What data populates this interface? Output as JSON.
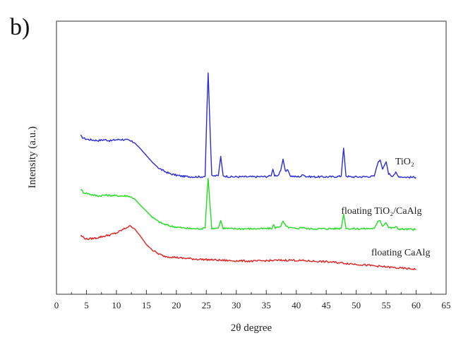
{
  "panel_label": "b)",
  "chart_data": {
    "type": "line",
    "title": "",
    "xlabel": "2θ degree",
    "ylabel": "Intensity (a.u.)",
    "xlim": [
      0,
      65
    ],
    "ylim": [
      0,
      100
    ],
    "x_ticks": [
      0,
      5,
      10,
      15,
      20,
      25,
      30,
      35,
      40,
      45,
      50,
      55,
      60,
      65
    ],
    "y_ticks_shown": false,
    "grid": false,
    "legend": "none",
    "series": [
      {
        "name": "TiO₂",
        "color": "#2b2bd9",
        "points": [
          [
            4,
            58
          ],
          [
            4.5,
            57.2
          ],
          [
            5,
            56.8
          ],
          [
            6,
            56.5
          ],
          [
            7,
            56.3
          ],
          [
            8,
            56.6
          ],
          [
            9,
            56.2
          ],
          [
            10,
            56.6
          ],
          [
            11,
            56.7
          ],
          [
            12,
            56.4
          ],
          [
            13,
            55.5
          ],
          [
            14,
            53.3
          ],
          [
            15,
            50.8
          ],
          [
            16,
            48.3
          ],
          [
            17,
            46.3
          ],
          [
            18,
            45
          ],
          [
            19,
            44.1
          ],
          [
            20,
            43.6
          ],
          [
            21,
            43.2
          ],
          [
            22,
            43.1
          ],
          [
            23,
            43
          ],
          [
            24,
            43
          ],
          [
            24.8,
            43.2
          ],
          [
            25.1,
            68
          ],
          [
            25.3,
            81
          ],
          [
            25.5,
            68
          ],
          [
            25.9,
            43.3
          ],
          [
            27,
            43.4
          ],
          [
            27.4,
            50.5
          ],
          [
            27.8,
            43.4
          ],
          [
            29,
            43
          ],
          [
            31,
            43
          ],
          [
            33,
            43
          ],
          [
            35,
            43.1
          ],
          [
            35.8,
            43.3
          ],
          [
            36.1,
            45.8
          ],
          [
            36.4,
            43.5
          ],
          [
            37,
            43.6
          ],
          [
            37.4,
            45.2
          ],
          [
            37.8,
            49.5
          ],
          [
            38.2,
            44.8
          ],
          [
            38.6,
            45.5
          ],
          [
            39,
            43.4
          ],
          [
            40,
            43
          ],
          [
            40.8,
            43.2
          ],
          [
            41.2,
            44
          ],
          [
            41.6,
            43.1
          ],
          [
            43,
            43
          ],
          [
            44,
            43
          ],
          [
            45,
            43
          ],
          [
            46,
            43
          ],
          [
            47.5,
            43.2
          ],
          [
            47.9,
            53.5
          ],
          [
            48.3,
            43.3
          ],
          [
            49,
            43
          ],
          [
            51,
            43
          ],
          [
            53,
            43.2
          ],
          [
            53.6,
            48
          ],
          [
            54,
            49.2
          ],
          [
            54.4,
            45.8
          ],
          [
            55,
            48.5
          ],
          [
            55.4,
            44.2
          ],
          [
            56,
            43.3
          ],
          [
            56.6,
            44.5
          ],
          [
            57,
            43.2
          ],
          [
            58,
            42.9
          ],
          [
            60,
            42.8
          ]
        ]
      },
      {
        "name": "floating TiO₂/CaAlg",
        "color": "#22dd22",
        "points": [
          [
            4,
            38.5
          ],
          [
            4.5,
            37.3
          ],
          [
            5,
            37
          ],
          [
            6,
            36.4
          ],
          [
            7,
            36
          ],
          [
            8,
            36.3
          ],
          [
            9,
            36.2
          ],
          [
            10,
            36.1
          ],
          [
            11,
            36
          ],
          [
            12,
            36
          ],
          [
            13,
            35
          ],
          [
            14,
            32.6
          ],
          [
            15,
            30.4
          ],
          [
            16,
            28.2
          ],
          [
            17,
            26.6
          ],
          [
            18,
            25.6
          ],
          [
            19,
            25
          ],
          [
            20,
            24.6
          ],
          [
            21,
            24.3
          ],
          [
            22,
            24.1
          ],
          [
            23,
            24
          ],
          [
            24,
            24
          ],
          [
            24.8,
            24.2
          ],
          [
            25.1,
            36
          ],
          [
            25.3,
            42.4
          ],
          [
            25.5,
            36
          ],
          [
            25.9,
            24.2
          ],
          [
            27,
            24.2
          ],
          [
            27.4,
            27
          ],
          [
            27.8,
            24.2
          ],
          [
            29,
            24
          ],
          [
            31,
            24
          ],
          [
            33,
            24
          ],
          [
            35,
            24
          ],
          [
            36,
            24.2
          ],
          [
            36.2,
            25.5
          ],
          [
            36.5,
            24.3
          ],
          [
            37.4,
            25
          ],
          [
            37.8,
            26.6
          ],
          [
            38.3,
            24.8
          ],
          [
            39,
            24.3
          ],
          [
            40,
            24
          ],
          [
            41.2,
            24.6
          ],
          [
            41.6,
            24
          ],
          [
            43,
            24
          ],
          [
            45,
            24
          ],
          [
            47.5,
            24.1
          ],
          [
            47.9,
            29.3
          ],
          [
            48.3,
            24.3
          ],
          [
            49,
            24
          ],
          [
            51,
            24
          ],
          [
            53,
            24.1
          ],
          [
            53.6,
            26.5
          ],
          [
            54,
            26.9
          ],
          [
            54.4,
            25
          ],
          [
            55,
            26.4
          ],
          [
            55.4,
            24.5
          ],
          [
            56,
            24.2
          ],
          [
            56.6,
            24.7
          ],
          [
            57,
            24
          ],
          [
            58,
            23.8
          ],
          [
            60,
            23.7
          ]
        ]
      },
      {
        "name": "floating CaAlg",
        "color": "#e02020",
        "points": [
          [
            4,
            21.5
          ],
          [
            5,
            20.2
          ],
          [
            6,
            20.4
          ],
          [
            7,
            20.8
          ],
          [
            8,
            21.3
          ],
          [
            9,
            21.8
          ],
          [
            10,
            22.4
          ],
          [
            11,
            23.6
          ],
          [
            12,
            24.8
          ],
          [
            12.5,
            24.9
          ],
          [
            13,
            24
          ],
          [
            14,
            21.3
          ],
          [
            15,
            18.2
          ],
          [
            16,
            16.2
          ],
          [
            17,
            14.8
          ],
          [
            18,
            13.9
          ],
          [
            19,
            13.7
          ],
          [
            20,
            13.5
          ],
          [
            21,
            13.2
          ],
          [
            22,
            13.1
          ],
          [
            23,
            12.9
          ],
          [
            25,
            12.7
          ],
          [
            27,
            12.5
          ],
          [
            29,
            12.3
          ],
          [
            31,
            12.2
          ],
          [
            33,
            12.1
          ],
          [
            35,
            12.3
          ],
          [
            37,
            12.4
          ],
          [
            39,
            12.5
          ],
          [
            41,
            12.3
          ],
          [
            43,
            12.1
          ],
          [
            45,
            11.9
          ],
          [
            47,
            11.6
          ],
          [
            49,
            11.2
          ],
          [
            51,
            10.8
          ],
          [
            53,
            10.4
          ],
          [
            55,
            10
          ],
          [
            57,
            9.6
          ],
          [
            60,
            9.2
          ]
        ]
      }
    ],
    "annotations": [
      {
        "text": "TiO₂",
        "x": 56.5,
        "y": 47.5
      },
      {
        "text": "floating TiO₂/CaAlg",
        "x": 47.5,
        "y": 29.5
      },
      {
        "text": "floating CaAlg",
        "x": 52.5,
        "y": 14.2
      }
    ]
  }
}
